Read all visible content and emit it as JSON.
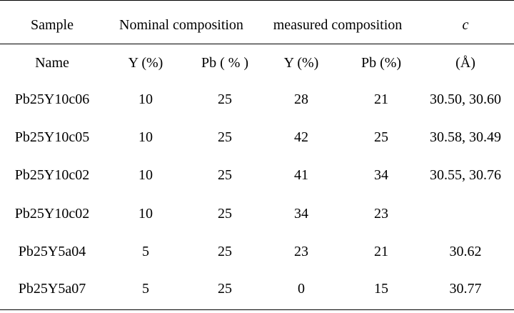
{
  "table": {
    "header_row1": {
      "sample": "Sample",
      "nominal": "Nominal composition",
      "measured": "measured composition",
      "c": "c"
    },
    "header_row2": [
      "Name",
      "Y (%)",
      "Pb ( % )",
      "Y (%)",
      "Pb (%)",
      "(Å)"
    ],
    "rows": [
      [
        "Pb25Y10c06",
        "10",
        "25",
        "28",
        "21",
        "30.50, 30.60"
      ],
      [
        "Pb25Y10c05",
        "10",
        "25",
        "42",
        "25",
        "30.58, 30.49"
      ],
      [
        "Pb25Y10c02",
        "10",
        "25",
        "41",
        "34",
        "30.55, 30.76"
      ],
      [
        "Pb25Y10c02",
        "10",
        "25",
        "34",
        "23",
        ""
      ],
      [
        "Pb25Y5a04",
        "5",
        "25",
        "23",
        "21",
        "30.62"
      ],
      [
        "Pb25Y5a07",
        "5",
        "25",
        "0",
        "15",
        "30.77"
      ]
    ]
  }
}
